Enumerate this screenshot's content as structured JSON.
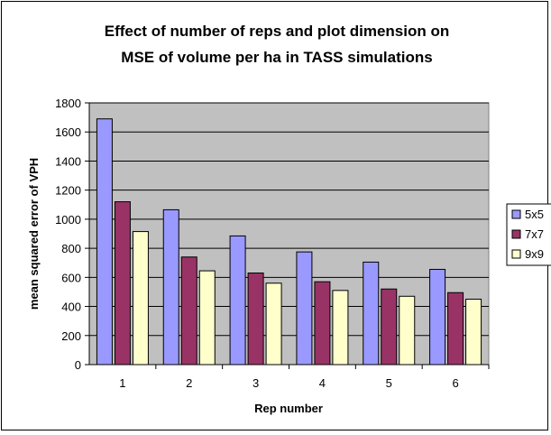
{
  "chart_data": {
    "type": "bar",
    "title_lines": [
      "Effect of number of reps and plot dimension on",
      "MSE of volume per ha in TASS simulations"
    ],
    "xlabel": "Rep number",
    "ylabel": "mean squared error of VPH",
    "categories": [
      "1",
      "2",
      "3",
      "4",
      "5",
      "6"
    ],
    "ylim": [
      0,
      1800
    ],
    "yticks": [
      0,
      200,
      400,
      600,
      800,
      1000,
      1200,
      1400,
      1600,
      1800
    ],
    "grid": true,
    "plot_background": "#c0c0c0",
    "legend_position": "right",
    "series": [
      {
        "name": "5x5",
        "color": "#9999ff",
        "values": [
          1690,
          1065,
          885,
          775,
          705,
          655
        ]
      },
      {
        "name": "7x7",
        "color": "#993366",
        "values": [
          1120,
          740,
          630,
          570,
          520,
          495
        ]
      },
      {
        "name": "9x9",
        "color": "#ffffcc",
        "values": [
          915,
          645,
          560,
          510,
          470,
          450
        ]
      }
    ]
  }
}
